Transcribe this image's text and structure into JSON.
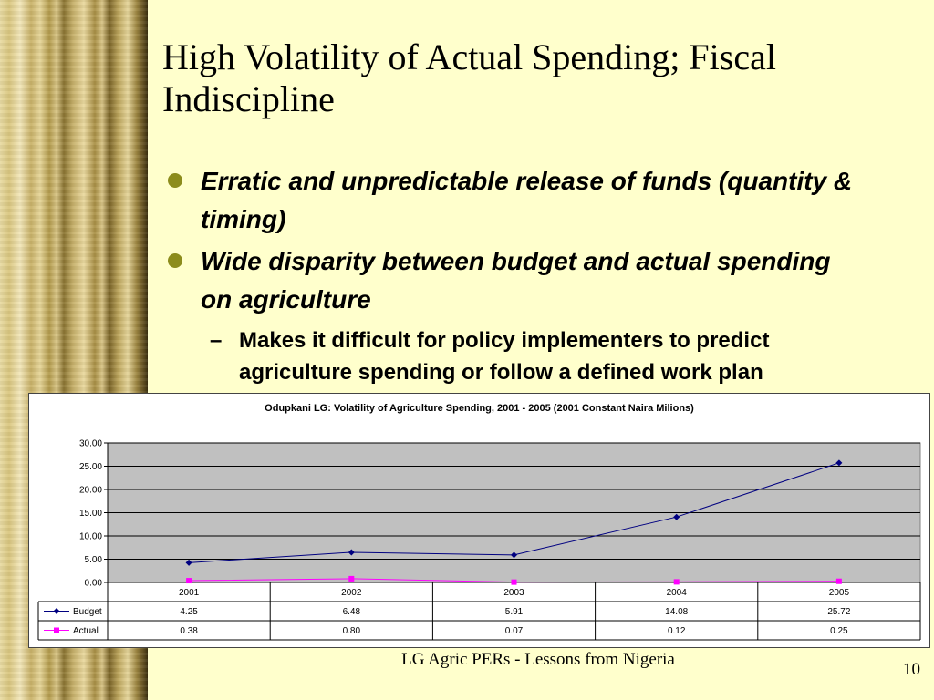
{
  "slide": {
    "title": "High Volatility of Actual Spending; Fiscal Indiscipline",
    "bullets": [
      "Erratic and unpredictable release of funds (quantity & timing)",
      "Wide disparity between budget and actual spending on agriculture"
    ],
    "sub_bullet": "Makes it difficult for policy implementers to predict agriculture spending or follow a defined work plan",
    "footer": "LG Agric PERs - Lessons from Nigeria",
    "page_number": "10"
  },
  "chart_data": {
    "type": "line",
    "title": "Odupkani LG: Volatility of Agriculture Spending, 2001 - 2005 (2001 Constant Naira Milions)",
    "categories": [
      "2001",
      "2002",
      "2003",
      "2004",
      "2005"
    ],
    "series": [
      {
        "name": "Budget",
        "values": [
          4.25,
          6.48,
          5.91,
          14.08,
          25.72
        ],
        "labels": [
          "4.25",
          "6.48",
          "5.91",
          "14.08",
          "25.72"
        ],
        "color": "#000080",
        "marker": "diamond"
      },
      {
        "name": "Actual",
        "values": [
          0.38,
          0.8,
          0.07,
          0.12,
          0.25
        ],
        "labels": [
          "0.38",
          "0.80",
          "0.07",
          "0.12",
          "0.25"
        ],
        "color": "#ff00ff",
        "marker": "square"
      }
    ],
    "yticks": [
      "0.00",
      "5.00",
      "10.00",
      "15.00",
      "20.00",
      "25.00",
      "30.00"
    ],
    "ylim": [
      0,
      30
    ],
    "grid": true,
    "plot_background": "#c0c0c0",
    "data_table": true
  }
}
